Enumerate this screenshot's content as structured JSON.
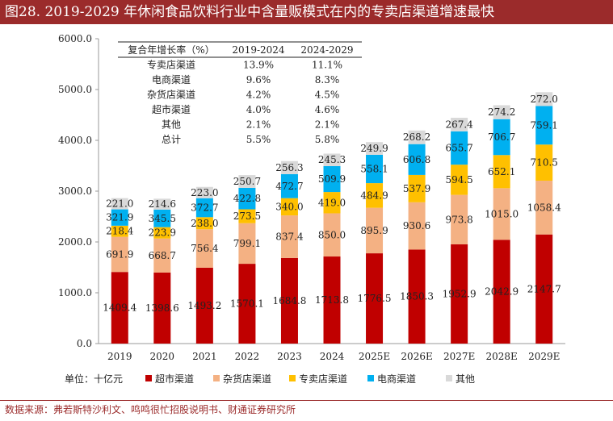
{
  "figure_title": "图28. 2019-2029 年休闲食品饮料行业中含量贩模式在内的专卖店渠道增速最快",
  "source": "数据来源：弗若斯特沙利文、鸣鸣很忙招股说明书、财通证券研究所",
  "colors": {
    "title_bg": "#9b2b2b",
    "supermarket": "#c00000",
    "grocery": "#f4b183",
    "specialty": "#ffc000",
    "ecommerce": "#00b0f0",
    "other": "#d9d9d9"
  },
  "chart_data": {
    "type": "bar",
    "stacked": true,
    "categories": [
      "2019",
      "2020",
      "2021",
      "2022",
      "2023",
      "2024",
      "2025E",
      "2026E",
      "2027E",
      "2028E",
      "2029E"
    ],
    "ylim": [
      0,
      6000
    ],
    "yticks": [
      "0.0",
      "1000.0",
      "2000.0",
      "3000.0",
      "4000.0",
      "5000.0",
      "6000.0"
    ],
    "unit_label": "单位：十亿元",
    "legend_position": "bottom",
    "series": [
      {
        "name": "超市渠道",
        "color_key": "supermarket",
        "values": [
          1409.4,
          1398.6,
          1493.2,
          1570.1,
          1684.8,
          1713.8,
          1776.5,
          1850.3,
          1952.9,
          2042.9,
          2147.7
        ],
        "labels": [
          "1409.4",
          "1398.6",
          "1493.2",
          "1570.1",
          "1684.8",
          "1713.8",
          "1776.5",
          "1850.3",
          "1952.9",
          "2042.9",
          "2147.7"
        ]
      },
      {
        "name": "杂货店渠道",
        "color_key": "grocery",
        "values": [
          691.9,
          668.7,
          756.4,
          799.1,
          837.4,
          850.0,
          895.9,
          930.6,
          973.8,
          1015.0,
          1058.4
        ],
        "labels": [
          "691.9",
          "668.7",
          "756.4",
          "799.1",
          "837.4",
          "850.0",
          "895.9",
          "930.6",
          "973.8",
          "1015.0",
          "1058.4"
        ]
      },
      {
        "name": "专卖店渠道",
        "color_key": "specialty",
        "values": [
          218.4,
          223.9,
          238.0,
          273.5,
          340.0,
          419.0,
          484.9,
          537.9,
          594.5,
          652.1,
          710.5
        ],
        "labels": [
          "218.4",
          "223.9",
          "238.0",
          "273.5",
          "340.0",
          "419.0",
          "484.9",
          "537.9",
          "594.5",
          "652.1",
          "710.5"
        ]
      },
      {
        "name": "电商渠道",
        "color_key": "ecommerce",
        "values": [
          321.9,
          345.5,
          372.7,
          422.8,
          472.7,
          509.9,
          558.1,
          606.8,
          655.7,
          706.7,
          759.1
        ],
        "labels": [
          "321.9",
          "345.5",
          "372.7",
          "422.8",
          "472.7",
          "509.9",
          "558.1",
          "606.8",
          "655.7",
          "706.7",
          "759.1"
        ]
      },
      {
        "name": "其他",
        "color_key": "other",
        "values": [
          221.0,
          214.6,
          223.0,
          250.7,
          256.3,
          245.3,
          249.9,
          268.2,
          267.4,
          274.2,
          272.0
        ],
        "labels": [
          "221.0",
          "214.6",
          "223.0",
          "250.7",
          "256.3",
          "245.3",
          "249.9",
          "268.2",
          "267.4",
          "274.2",
          "272.0"
        ]
      }
    ],
    "cagr_table": {
      "header": [
        "复合年增长率（%）",
        "2019-2024",
        "2024-2029"
      ],
      "rows": [
        [
          "专卖店渠道",
          "13.9%",
          "11.1%"
        ],
        [
          "电商渠道",
          "9.6%",
          "8.3%"
        ],
        [
          "杂货店渠道",
          "4.2%",
          "4.5%"
        ],
        [
          "超市渠道",
          "4.0%",
          "4.6%"
        ],
        [
          "其他",
          "2.1%",
          "2.1%"
        ],
        [
          "总计",
          "5.5%",
          "5.8%"
        ]
      ]
    }
  }
}
